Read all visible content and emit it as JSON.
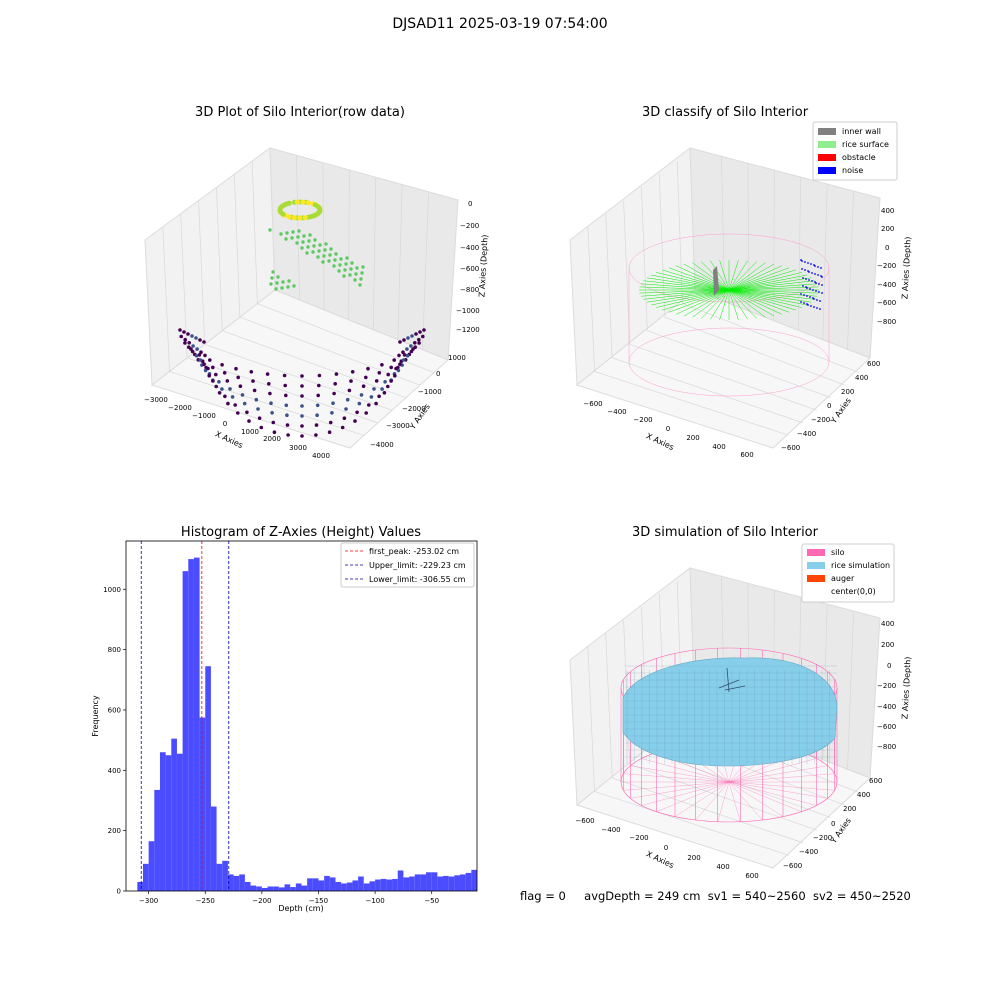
{
  "suptitle": "DJSAD11 2025-03-19 07:54:00",
  "footer": {
    "flag": "flag = 0",
    "avg": "avgDepth = 249 cm",
    "sv1": "sv1 = 540~2560",
    "sv2": "sv2 = 450~2520"
  },
  "chart_data": [
    {
      "type": "scatter",
      "title": "3D Plot of Silo Interior(row data)",
      "xlabel": "X Axies",
      "ylabel": "Y Axies",
      "zlabel": "Z Axies (Depth)",
      "x_ticks": [
        "−3000",
        "−2000",
        "−1000",
        "0",
        "1000",
        "2000",
        "3000",
        "4000"
      ],
      "y_ticks": [
        "1000",
        "0",
        "−1000",
        "−2000",
        "−3000",
        "−4000"
      ],
      "z_ticks": [
        "0",
        "−200",
        "−400",
        "−600",
        "−800",
        "−1000",
        "−1200"
      ],
      "colormap": "viridis",
      "grid": true
    },
    {
      "type": "scatter",
      "title": "3D classify of Silo Interior",
      "xlabel": "X Axies",
      "ylabel": "Y Axies",
      "zlabel": "Z Axies (Depth)",
      "x_ticks": [
        "−600",
        "−400",
        "−200",
        "0",
        "200",
        "400",
        "600"
      ],
      "y_ticks": [
        "600",
        "400",
        "200",
        "0",
        "−200",
        "−400",
        "−600"
      ],
      "z_ticks": [
        "400",
        "200",
        "0",
        "−200",
        "−400",
        "−600",
        "−800"
      ],
      "legend": [
        {
          "label": "inner wall",
          "color": "#808080"
        },
        {
          "label": "rice surface",
          "color": "#90ee90"
        },
        {
          "label": "obstacle",
          "color": "#ff0000"
        },
        {
          "label": "noise",
          "color": "#0000ff"
        }
      ],
      "legend_position": "top-right",
      "grid": true
    },
    {
      "type": "bar",
      "title": "Histogram of Z-Axies (Height) Values",
      "xlabel": "Depth (cm)",
      "ylabel": "Frequency",
      "bar_color": "#4c4cff",
      "bin_width": 5,
      "x": [
        -310,
        -305,
        -300,
        -295,
        -290,
        -285,
        -280,
        -275,
        -270,
        -265,
        -260,
        -255,
        -250,
        -245,
        -240,
        -235,
        -230,
        -225,
        -220,
        -215,
        -210,
        -205,
        -200,
        -195,
        -190,
        -185,
        -180,
        -175,
        -170,
        -165,
        -160,
        -155,
        -150,
        -145,
        -140,
        -135,
        -130,
        -125,
        -120,
        -115,
        -110,
        -105,
        -100,
        -95,
        -90,
        -85,
        -80,
        -75,
        -70,
        -65,
        -60,
        -55,
        -50,
        -45,
        -40,
        -35,
        -30,
        -25,
        -20,
        -15
      ],
      "values": [
        30,
        90,
        165,
        335,
        460,
        450,
        505,
        455,
        1060,
        1100,
        1105,
        575,
        745,
        280,
        90,
        100,
        55,
        50,
        55,
        30,
        18,
        15,
        10,
        15,
        15,
        12,
        22,
        13,
        25,
        18,
        42,
        42,
        35,
        50,
        45,
        30,
        25,
        28,
        35,
        48,
        25,
        32,
        38,
        40,
        38,
        40,
        68,
        45,
        48,
        55,
        55,
        62,
        62,
        48,
        50,
        48,
        52,
        55,
        60,
        70
      ],
      "xlim": [
        -320,
        -10
      ],
      "ylim": [
        0,
        1160
      ],
      "x_ticks": [
        -300,
        -250,
        -200,
        -150,
        -100,
        -50
      ],
      "x_tick_labels": [
        "−300",
        "−250",
        "−200",
        "−150",
        "−100",
        "−50"
      ],
      "y_ticks": [
        0,
        200,
        400,
        600,
        800,
        1000
      ],
      "lines": [
        {
          "label": "first_peak: -253.02 cm",
          "x": -253.02,
          "color": "#ff0000"
        },
        {
          "label": "Upper_limit: -229.23 cm",
          "x": -229.23,
          "color": "#0000aa"
        },
        {
          "label": "Lower_limit: -306.55 cm",
          "x": -306.55,
          "color": "#0000aa"
        }
      ],
      "legend_position": "top-right",
      "grid": false
    },
    {
      "type": "surface",
      "title": "3D simulation of Silo Interior",
      "xlabel": "X Axies",
      "ylabel": "Y Axies",
      "zlabel": "Z Axies (Depth)",
      "x_ticks": [
        "−600",
        "−400",
        "−200",
        "0",
        "200",
        "400",
        "600"
      ],
      "y_ticks": [
        "600",
        "400",
        "200",
        "0",
        "−200",
        "−400",
        "−600"
      ],
      "z_ticks": [
        "400",
        "200",
        "0",
        "−200",
        "−400",
        "−600",
        "−800"
      ],
      "legend": [
        {
          "label": "silo",
          "color": "#ff69b4"
        },
        {
          "label": "rice simulation",
          "color": "#87ceeb"
        },
        {
          "label": "auger",
          "color": "#ff4500"
        },
        {
          "label": "center(0,0)",
          "color": "#ffffff"
        }
      ],
      "legend_position": "top-right",
      "grid": true
    }
  ]
}
